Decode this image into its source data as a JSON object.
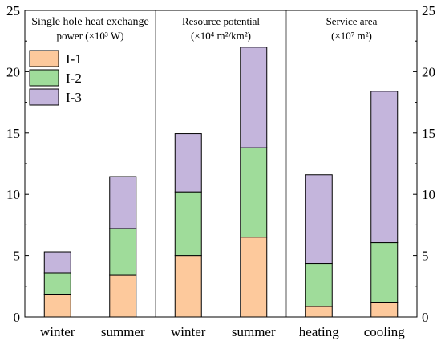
{
  "chart_data": {
    "type": "bar",
    "stacked": true,
    "categories": [
      "winter",
      "summer",
      "winter",
      "summer",
      "heating",
      "cooling"
    ],
    "series": [
      {
        "name": "I-1",
        "color": "#fdc99c",
        "values": [
          1.8,
          3.4,
          5.0,
          6.5,
          0.85,
          1.15
        ]
      },
      {
        "name": "I-2",
        "color": "#9fdc9a",
        "values": [
          1.8,
          3.8,
          5.2,
          7.3,
          3.5,
          4.9
        ]
      },
      {
        "name": "I-3",
        "color": "#c4b5dc",
        "values": [
          1.7,
          4.25,
          4.75,
          8.2,
          7.25,
          12.35
        ]
      }
    ],
    "ylim": [
      0,
      25
    ],
    "yticks": [
      0,
      5,
      10,
      15,
      20,
      25
    ],
    "right_axis_mirror": true,
    "grid": false,
    "legend_position": "top-left",
    "groups": [
      {
        "label_line1": "Single hole heat exchange",
        "label_line2": "power (×10³ W)",
        "categories": [
          0,
          1
        ]
      },
      {
        "label_line1": "Resource potential",
        "label_line2": "(×10⁴ m²/km²)",
        "categories": [
          2,
          3
        ]
      },
      {
        "label_line1": "Service area",
        "label_line2": "(×10⁷ m²)",
        "categories": [
          4,
          5
        ]
      }
    ]
  }
}
